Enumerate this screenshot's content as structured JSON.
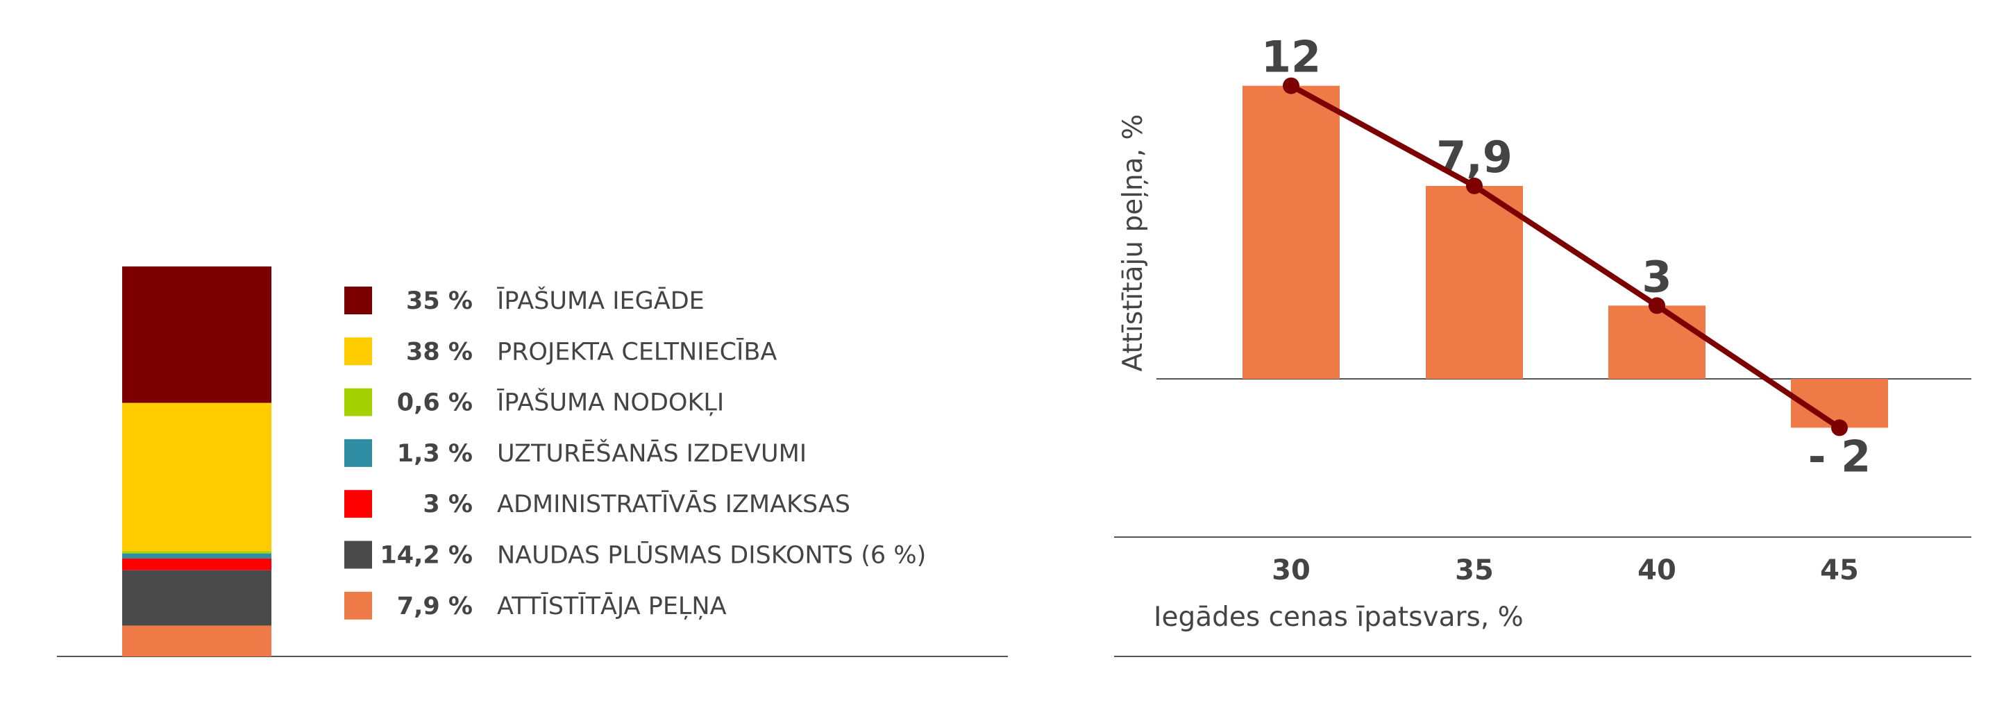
{
  "chart_data": [
    {
      "type": "bar",
      "stacked": true,
      "title": "",
      "series": [
        {
          "name": "ĪPAŠUMA IEGĀDE",
          "value": 35,
          "value_label": "35 %",
          "color": "#7d0000"
        },
        {
          "name": "PROJEKTA CELTNIECĪBA",
          "value": 38,
          "value_label": "38 %",
          "color": "#ffcc00"
        },
        {
          "name": "ĪPAŠUMA NODOKĻI",
          "value": 0.6,
          "value_label": "0,6 %",
          "color": "#a6d100"
        },
        {
          "name": "UZTURĒŠANĀS IZDEVUMI",
          "value": 1.3,
          "value_label": "1,3 %",
          "color": "#2e8ca3"
        },
        {
          "name": "ADMINISTRATĪVĀS IZMAKSAS",
          "value": 3,
          "value_label": "3 %",
          "color": "#ff0000"
        },
        {
          "name": "NAUDAS PLŪSMAS DISKONTS (6 %)",
          "value": 14.2,
          "value_label": "14,2 %",
          "color": "#4a4a4a"
        },
        {
          "name": "ATTĪSTĪTĀJA PEĻŅA",
          "value": 7.9,
          "value_label": "7,9 %",
          "color": "#ee7a48"
        }
      ],
      "legend_position": "right"
    },
    {
      "type": "bar",
      "overlay": "line",
      "categories": [
        "30",
        "35",
        "40",
        "45"
      ],
      "values": [
        12,
        7.9,
        3,
        -2
      ],
      "data_labels": [
        "12",
        "7,9",
        "3",
        "- 2"
      ],
      "xlabel": "Iegādes cenas īpatsvars, %",
      "ylabel": "Attīstītāju peļņa, %",
      "ylim": [
        -2,
        12
      ],
      "grid": false,
      "bar_color": "#ee7a48",
      "line_color": "#7d0000"
    }
  ]
}
